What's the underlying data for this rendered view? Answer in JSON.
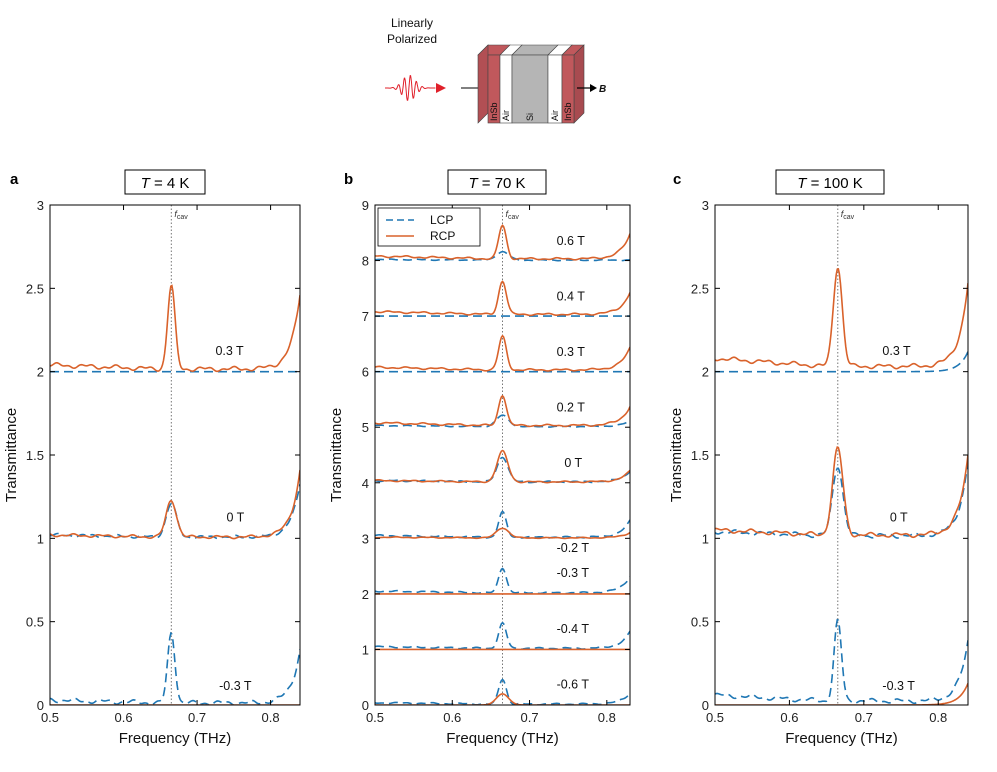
{
  "figure": {
    "schematic": {
      "pulse_label_line1": "Linearly",
      "pulse_label_line2": "Polarized",
      "layers": [
        "InSb",
        "Air",
        "Si",
        "Air",
        "InSb"
      ],
      "field_label": "B",
      "colors": {
        "insb": "#c0585c",
        "si": "#b5b5b5",
        "air": "#ffffff",
        "pulse": "#e0202a"
      }
    },
    "colors": {
      "lcp": "#1f77b4",
      "rcp": "#d9622b",
      "fcav_line": "#777777"
    }
  },
  "chart_data": [
    {
      "type": "line",
      "panel": "a",
      "title_prefix": "T",
      "title_suffix": " = 4 K",
      "xlabel": "Frequency (THz)",
      "ylabel": "Transmittance",
      "xlim": [
        0.5,
        0.84
      ],
      "ylim": [
        0,
        3
      ],
      "xticks": [
        0.5,
        0.6,
        0.7,
        0.8
      ],
      "xtick_labels": [
        "0.5",
        "0.6",
        "0.7",
        "0.8"
      ],
      "yticks": [
        0,
        0.5,
        1,
        1.5,
        2,
        2.5,
        3
      ],
      "ytick_labels": [
        "0",
        "0.5",
        "1",
        "1.5",
        "2",
        "2.5",
        "3"
      ],
      "fcav": 0.665,
      "fcav_label": "f",
      "fcav_sub": "cav",
      "legend": null,
      "traces": [
        {
          "field": "0.3 T",
          "offset": 2,
          "label_pos": [
            0.725,
            2.1
          ],
          "lcp": {
            "base": 0.0,
            "peak": 0.0,
            "width": 0.005,
            "edge": 0.0,
            "ripple": 0.0
          },
          "rcp": {
            "base": 0.04,
            "peak": 0.5,
            "width": 0.005,
            "edge": 0.45,
            "ripple": 0.015
          }
        },
        {
          "field": "0 T",
          "offset": 1,
          "label_pos": [
            0.74,
            1.1
          ],
          "lcp": {
            "base": 0.02,
            "peak": 0.2,
            "width": 0.007,
            "edge": 0.32,
            "ripple": 0.01
          },
          "rcp": {
            "base": 0.02,
            "peak": 0.22,
            "width": 0.007,
            "edge": 0.4,
            "ripple": 0.01
          }
        },
        {
          "field": "-0.3 T",
          "offset": 0,
          "label_pos": [
            0.73,
            0.09
          ],
          "lcp": {
            "base": 0.03,
            "peak": 0.42,
            "width": 0.005,
            "edge": 0.32,
            "ripple": 0.015
          },
          "rcp": {
            "base": 0.0,
            "peak": 0.0,
            "width": 0.005,
            "edge": 0.0,
            "ripple": 0.0
          }
        }
      ]
    },
    {
      "type": "line",
      "panel": "b",
      "title_prefix": "T",
      "title_suffix": " = 70 K",
      "xlabel": "Frequency (THz)",
      "ylabel": "Transmittance",
      "xlim": [
        0.5,
        0.83
      ],
      "ylim": [
        0,
        9
      ],
      "xticks": [
        0.5,
        0.6,
        0.7,
        0.8
      ],
      "xtick_labels": [
        "0.5",
        "0.6",
        "0.7",
        "0.8"
      ],
      "yticks": [
        0,
        1,
        2,
        3,
        4,
        5,
        6,
        7,
        8,
        9
      ],
      "ytick_labels": [
        "0",
        "1",
        "2",
        "3",
        "4",
        "5",
        "6",
        "7",
        "8",
        "9"
      ],
      "fcav": 0.665,
      "fcav_label": "f",
      "fcav_sub": "cav",
      "legend": {
        "entries": [
          "LCP",
          "RCP"
        ]
      },
      "traces": [
        {
          "field": "0.6 T",
          "offset": 8,
          "label_pos": [
            0.735,
            8.28
          ],
          "lcp": {
            "base": 0.02,
            "peak": 0.15,
            "width": 0.008,
            "edge": 0.0,
            "ripple": 0.01
          },
          "rcp": {
            "base": 0.08,
            "peak": 0.6,
            "width": 0.005,
            "edge": 0.45,
            "ripple": 0.02
          }
        },
        {
          "field": "0.4 T",
          "offset": 7,
          "label_pos": [
            0.735,
            7.28
          ],
          "lcp": {
            "base": 0.0,
            "peak": 0.0,
            "width": 0.005,
            "edge": 0.0,
            "ripple": 0.0
          },
          "rcp": {
            "base": 0.08,
            "peak": 0.6,
            "width": 0.005,
            "edge": 0.4,
            "ripple": 0.02
          }
        },
        {
          "field": "0.3 T",
          "offset": 6,
          "label_pos": [
            0.735,
            6.28
          ],
          "lcp": {
            "base": 0.0,
            "peak": 0.0,
            "width": 0.005,
            "edge": 0.0,
            "ripple": 0.0
          },
          "rcp": {
            "base": 0.08,
            "peak": 0.6,
            "width": 0.005,
            "edge": 0.4,
            "ripple": 0.02
          }
        },
        {
          "field": "0.2 T",
          "offset": 5,
          "label_pos": [
            0.735,
            5.28
          ],
          "lcp": {
            "base": 0.03,
            "peak": 0.2,
            "width": 0.008,
            "edge": 0.1,
            "ripple": 0.01
          },
          "rcp": {
            "base": 0.08,
            "peak": 0.55,
            "width": 0.005,
            "edge": 0.35,
            "ripple": 0.02
          }
        },
        {
          "field": "0 T",
          "offset": 4,
          "label_pos": [
            0.745,
            4.28
          ],
          "lcp": {
            "base": 0.04,
            "peak": 0.45,
            "width": 0.007,
            "edge": 0.2,
            "ripple": 0.015
          },
          "rcp": {
            "base": 0.04,
            "peak": 0.55,
            "width": 0.007,
            "edge": 0.2,
            "ripple": 0.015
          }
        },
        {
          "field": "-0.2 T",
          "offset": 3,
          "label_pos": [
            0.735,
            2.75
          ],
          "lcp": {
            "base": 0.05,
            "peak": 0.45,
            "width": 0.005,
            "edge": 0.3,
            "ripple": 0.015
          },
          "rcp": {
            "base": 0.02,
            "peak": 0.18,
            "width": 0.008,
            "edge": 0.1,
            "ripple": 0.01
          }
        },
        {
          "field": "-0.3 T",
          "offset": 2,
          "label_pos": [
            0.735,
            2.3
          ],
          "lcp": {
            "base": 0.05,
            "peak": 0.45,
            "width": 0.005,
            "edge": 0.3,
            "ripple": 0.015
          },
          "rcp": {
            "base": 0.0,
            "peak": 0.0,
            "width": 0.005,
            "edge": 0.0,
            "ripple": 0.0
          }
        },
        {
          "field": "-0.4 T",
          "offset": 1,
          "label_pos": [
            0.735,
            1.3
          ],
          "lcp": {
            "base": 0.05,
            "peak": 0.45,
            "width": 0.005,
            "edge": 0.3,
            "ripple": 0.015
          },
          "rcp": {
            "base": 0.0,
            "peak": 0.0,
            "width": 0.005,
            "edge": 0.0,
            "ripple": 0.0
          }
        },
        {
          "field": "-0.6 T",
          "offset": 0,
          "label_pos": [
            0.735,
            0.3
          ],
          "lcp": {
            "base": 0.04,
            "peak": 0.45,
            "width": 0.005,
            "edge": 0.2,
            "ripple": 0.015
          },
          "rcp": {
            "base": 0.0,
            "peak": 0.2,
            "width": 0.008,
            "edge": 0.0,
            "ripple": 0.0
          }
        }
      ]
    },
    {
      "type": "line",
      "panel": "c",
      "title_prefix": "T",
      "title_suffix": " = 100 K",
      "xlabel": "Frequency (THz)",
      "ylabel": "Transmittance",
      "xlim": [
        0.5,
        0.84
      ],
      "ylim": [
        0,
        3
      ],
      "xticks": [
        0.5,
        0.6,
        0.7,
        0.8
      ],
      "xtick_labels": [
        "0.5",
        "0.6",
        "0.7",
        "0.8"
      ],
      "yticks": [
        0,
        0.5,
        1,
        1.5,
        2,
        2.5,
        3
      ],
      "ytick_labels": [
        "0",
        "0.5",
        "1",
        "1.5",
        "2",
        "2.5",
        "3"
      ],
      "fcav": 0.665,
      "fcav_label": "f",
      "fcav_sub": "cav",
      "legend": null,
      "traces": [
        {
          "field": "0.3 T",
          "offset": 2,
          "label_pos": [
            0.725,
            2.1
          ],
          "lcp": {
            "base": 0.0,
            "peak": 0.0,
            "width": 0.005,
            "edge": 0.12,
            "ripple": 0.0
          },
          "rcp": {
            "base": 0.08,
            "peak": 0.6,
            "width": 0.006,
            "edge": 0.5,
            "ripple": 0.015
          }
        },
        {
          "field": "0 T",
          "offset": 1,
          "label_pos": [
            0.735,
            1.1
          ],
          "lcp": {
            "base": 0.04,
            "peak": 0.42,
            "width": 0.007,
            "edge": 0.45,
            "ripple": 0.015
          },
          "rcp": {
            "base": 0.05,
            "peak": 0.52,
            "width": 0.007,
            "edge": 0.48,
            "ripple": 0.015
          }
        },
        {
          "field": "-0.3 T",
          "offset": 0,
          "label_pos": [
            0.725,
            0.09
          ],
          "lcp": {
            "base": 0.06,
            "peak": 0.48,
            "width": 0.005,
            "edge": 0.36,
            "ripple": 0.015
          },
          "rcp": {
            "base": 0.0,
            "peak": 0.0,
            "width": 0.005,
            "edge": 0.13,
            "ripple": 0.0
          }
        }
      ]
    }
  ]
}
